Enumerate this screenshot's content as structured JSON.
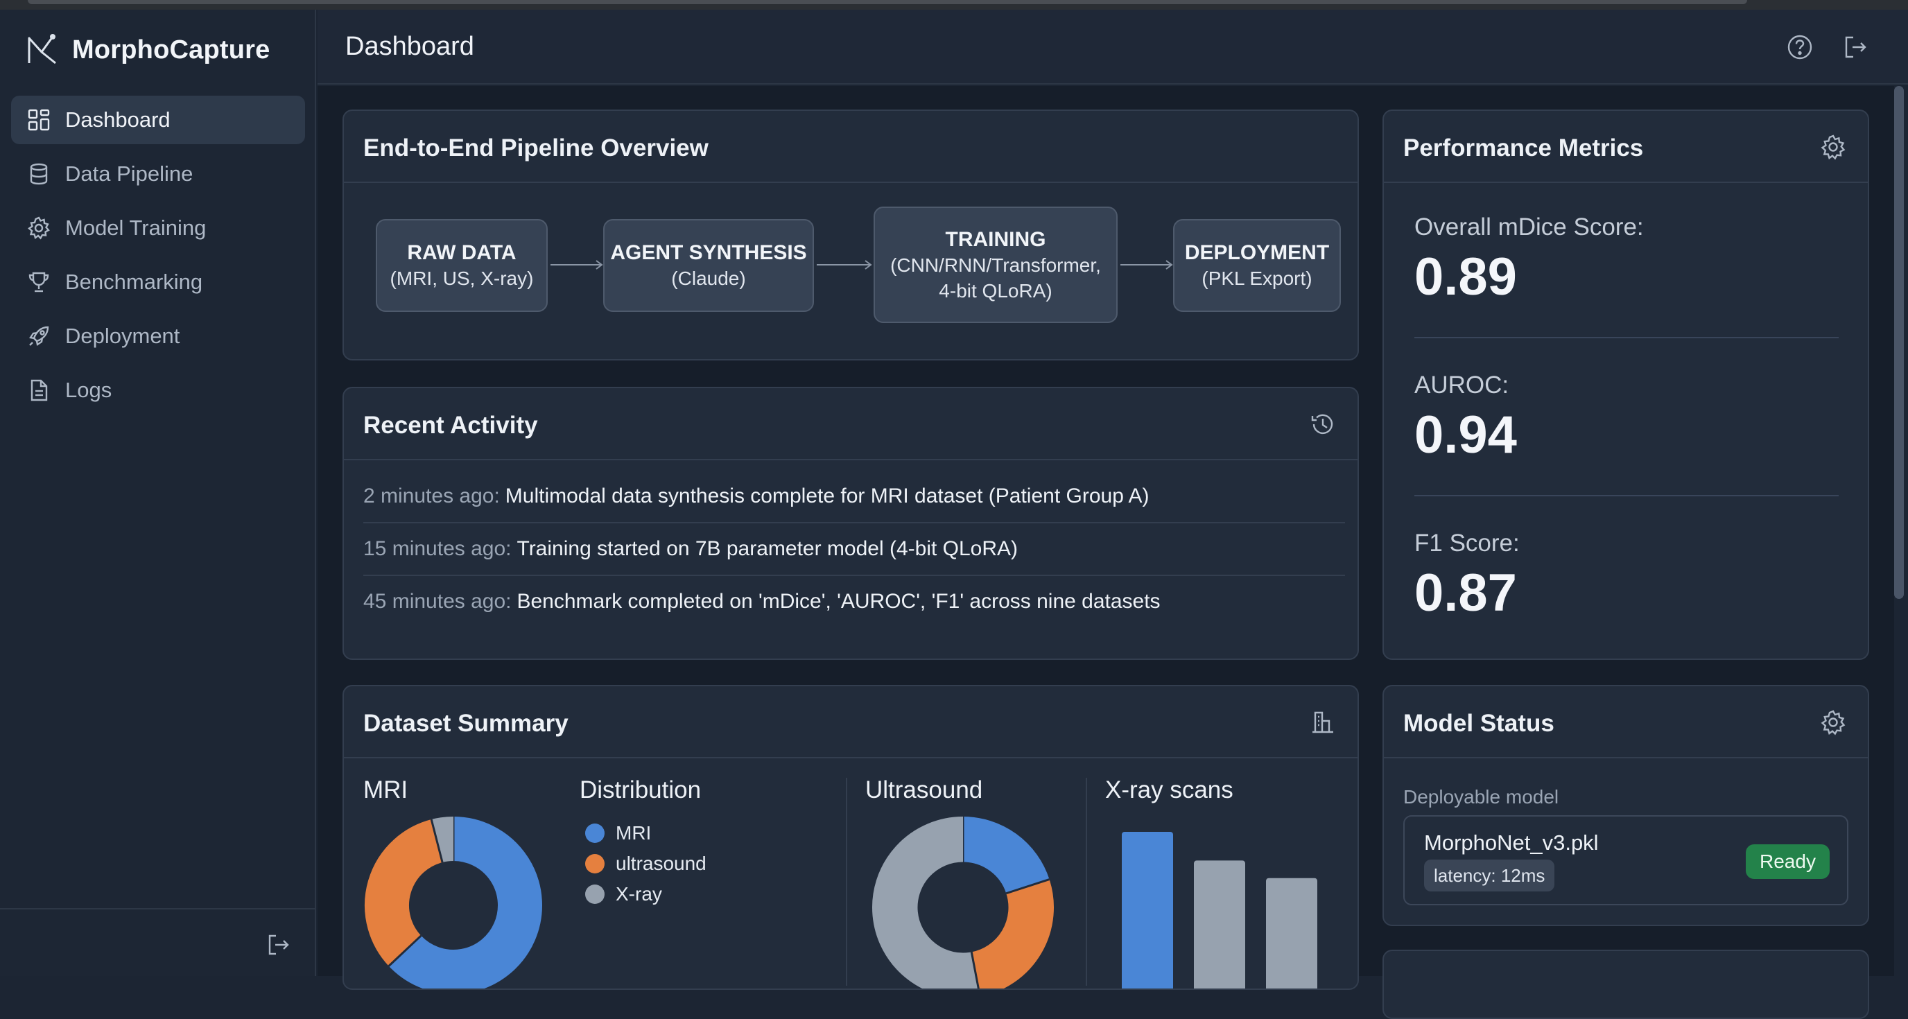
{
  "app": {
    "name": "MorphoCapture"
  },
  "sidebar": {
    "items": [
      {
        "label": "Dashboard",
        "icon": "grid-icon",
        "active": true
      },
      {
        "label": "Data Pipeline",
        "icon": "database-icon"
      },
      {
        "label": "Model Training",
        "icon": "gear-icon"
      },
      {
        "label": "Benchmarking",
        "icon": "trophy-icon"
      },
      {
        "label": "Deployment",
        "icon": "rocket-icon"
      },
      {
        "label": "Logs",
        "icon": "document-icon"
      }
    ]
  },
  "header": {
    "title": "Dashboard"
  },
  "pipeline": {
    "title": "End-to-End Pipeline Overview",
    "nodes": [
      {
        "title": "RAW DATA",
        "sub1": "(MRI, US, X-ray)",
        "sub2": ""
      },
      {
        "title": "AGENT SYNTHESIS",
        "sub1": "(Claude)",
        "sub2": ""
      },
      {
        "title": "TRAINING",
        "sub1": "(CNN/RNN/Transformer,",
        "sub2": "4-bit QLoRA)"
      },
      {
        "title": "DEPLOYMENT",
        "sub1": "(PKL Export)",
        "sub2": ""
      }
    ]
  },
  "activity": {
    "title": "Recent Activity",
    "items": [
      {
        "time": "2 minutes ago:",
        "msg": "Multimodal data synthesis complete for MRI dataset (Patient Group A)"
      },
      {
        "time": "15 minutes ago:",
        "msg": "Training started on 7B parameter model (4-bit QLoRA)"
      },
      {
        "time": "45 minutes ago:",
        "msg": "Benchmark completed on 'mDice', 'AUROC', 'F1' across nine datasets"
      }
    ]
  },
  "metrics": {
    "title": "Performance Metrics",
    "items": [
      {
        "label": "Overall mDice Score:",
        "value": "0.89"
      },
      {
        "label": "AUROC:",
        "value": "0.94"
      },
      {
        "label": "F1 Score:",
        "value": "0.87"
      }
    ]
  },
  "dataset": {
    "title": "Dataset Summary",
    "mri_label": "MRI",
    "distribution_label": "Distribution",
    "ultrasound_label": "Ultrasound",
    "xray_label": "X-ray scans",
    "legend": [
      {
        "label": "MRI",
        "color": "#4a86d6"
      },
      {
        "label": "ultrasound",
        "color": "#e5803f"
      },
      {
        "label": "X-ray",
        "color": "#97a2af"
      }
    ]
  },
  "model_status": {
    "title": "Model Status",
    "label": "Deployable model",
    "model_name": "MorphoNet_v3.pkl",
    "latency": "latency: 12ms",
    "status": "Ready"
  },
  "chart_data": [
    {
      "type": "pie",
      "title": "MRI",
      "slices": [
        {
          "name": "MRI",
          "value": 0.63,
          "color": "#4a86d6"
        },
        {
          "name": "ultrasound",
          "value": 0.33,
          "color": "#e5803f"
        },
        {
          "name": "X-ray",
          "value": 0.04,
          "color": "#97a2af"
        }
      ]
    },
    {
      "type": "pie",
      "title": "Ultrasound",
      "slices": [
        {
          "name": "MRI",
          "value": 0.2,
          "color": "#4a86d6"
        },
        {
          "name": "ultrasound",
          "value": 0.27,
          "color": "#e5803f"
        },
        {
          "name": "X-ray",
          "value": 0.53,
          "color": "#97a2af"
        }
      ]
    },
    {
      "type": "bar",
      "title": "X-ray scans",
      "categories": [
        "",
        "",
        ""
      ],
      "values": [
        100,
        82,
        71
      ],
      "colors": [
        "#4a86d6",
        "#97a2af",
        "#97a2af"
      ],
      "ylim": [
        0,
        100
      ]
    }
  ]
}
